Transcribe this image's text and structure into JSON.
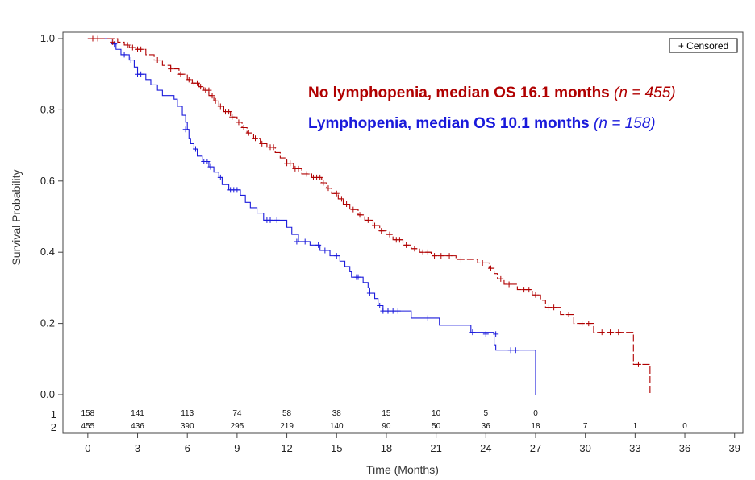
{
  "chart_data": {
    "type": "line",
    "title": "",
    "xlabel": "Time (Months)",
    "ylabel": "Survival Probability",
    "xlim": [
      -1.5,
      39.5
    ],
    "ylim": [
      0,
      1.03
    ],
    "x_ticks": [
      0,
      3,
      6,
      9,
      12,
      15,
      18,
      21,
      24,
      27,
      30,
      33,
      36,
      39
    ],
    "y_ticks": [
      0.0,
      0.2,
      0.4,
      0.6,
      0.8,
      1.0
    ],
    "x_tick_labels": [
      "0",
      "3",
      "6",
      "9",
      "12",
      "15",
      "18",
      "21",
      "24",
      "27",
      "30",
      "33",
      "36",
      "39"
    ],
    "y_tick_labels": [
      "0.0",
      "0.2",
      "0.4",
      "0.6",
      "0.8",
      "1.0"
    ],
    "grid": false,
    "legend": {
      "placement": "top-right",
      "label": "+ Censored"
    },
    "annotations": [
      {
        "text": "No lymphopenia, median OS 16.1 months",
        "n_text": "(n = 455)",
        "color": "#b00000"
      },
      {
        "text": "Lymphopenia, median OS 10.1 months",
        "n_text": "(n = 158)",
        "color": "#1a1adb"
      }
    ],
    "series": [
      {
        "key": "1",
        "color": "#1a1adb",
        "dash": "solid",
        "steps": [
          [
            0,
            1.0
          ],
          [
            1.4,
            0.985
          ],
          [
            1.7,
            0.97
          ],
          [
            2.0,
            0.955
          ],
          [
            2.5,
            0.94
          ],
          [
            2.8,
            0.92
          ],
          [
            3.0,
            0.9
          ],
          [
            3.5,
            0.885
          ],
          [
            3.8,
            0.87
          ],
          [
            4.2,
            0.855
          ],
          [
            4.5,
            0.84
          ],
          [
            5.2,
            0.83
          ],
          [
            5.4,
            0.81
          ],
          [
            5.7,
            0.785
          ],
          [
            5.9,
            0.765
          ],
          [
            6.0,
            0.745
          ],
          [
            6.1,
            0.72
          ],
          [
            6.2,
            0.705
          ],
          [
            6.4,
            0.69
          ],
          [
            6.6,
            0.67
          ],
          [
            6.9,
            0.655
          ],
          [
            7.3,
            0.64
          ],
          [
            7.6,
            0.625
          ],
          [
            7.9,
            0.61
          ],
          [
            8.1,
            0.59
          ],
          [
            8.5,
            0.575
          ],
          [
            9.2,
            0.56
          ],
          [
            9.5,
            0.54
          ],
          [
            9.8,
            0.525
          ],
          [
            10.2,
            0.51
          ],
          [
            10.6,
            0.49
          ],
          [
            12.0,
            0.47
          ],
          [
            12.3,
            0.45
          ],
          [
            12.7,
            0.43
          ],
          [
            13.4,
            0.42
          ],
          [
            14.0,
            0.405
          ],
          [
            14.6,
            0.39
          ],
          [
            15.2,
            0.375
          ],
          [
            15.5,
            0.36
          ],
          [
            15.8,
            0.345
          ],
          [
            15.9,
            0.33
          ],
          [
            16.6,
            0.315
          ],
          [
            16.9,
            0.3
          ],
          [
            17.0,
            0.285
          ],
          [
            17.3,
            0.27
          ],
          [
            17.5,
            0.25
          ],
          [
            17.8,
            0.235
          ],
          [
            19.5,
            0.215
          ],
          [
            21.2,
            0.195
          ],
          [
            23.1,
            0.175
          ],
          [
            24.5,
            0.14
          ],
          [
            24.6,
            0.125
          ],
          [
            27.0,
            0.0
          ]
        ],
        "censored": [
          [
            1.6,
            0.985
          ],
          [
            2.2,
            0.955
          ],
          [
            2.6,
            0.94
          ],
          [
            3.0,
            0.9
          ],
          [
            3.2,
            0.9
          ],
          [
            5.9,
            0.745
          ],
          [
            6.5,
            0.69
          ],
          [
            7.0,
            0.655
          ],
          [
            7.2,
            0.655
          ],
          [
            7.4,
            0.64
          ],
          [
            8.0,
            0.61
          ],
          [
            8.6,
            0.575
          ],
          [
            8.8,
            0.575
          ],
          [
            9.0,
            0.575
          ],
          [
            10.8,
            0.49
          ],
          [
            11.0,
            0.49
          ],
          [
            11.4,
            0.49
          ],
          [
            12.6,
            0.43
          ],
          [
            13.1,
            0.43
          ],
          [
            13.9,
            0.42
          ],
          [
            14.3,
            0.405
          ],
          [
            15.0,
            0.39
          ],
          [
            16.2,
            0.33
          ],
          [
            16.3,
            0.33
          ],
          [
            17.0,
            0.285
          ],
          [
            17.6,
            0.25
          ],
          [
            17.8,
            0.235
          ],
          [
            18.1,
            0.235
          ],
          [
            18.4,
            0.235
          ],
          [
            18.7,
            0.235
          ],
          [
            20.5,
            0.215
          ],
          [
            23.2,
            0.175
          ],
          [
            24.0,
            0.17
          ],
          [
            24.6,
            0.17
          ],
          [
            25.5,
            0.125
          ],
          [
            25.8,
            0.125
          ]
        ],
        "at_risk": [
          158,
          141,
          113,
          74,
          58,
          38,
          15,
          10,
          5,
          0
        ]
      },
      {
        "key": "2",
        "color": "#b00000",
        "dash": "dashed",
        "steps": [
          [
            0,
            1.0
          ],
          [
            1.8,
            0.99
          ],
          [
            2.2,
            0.982
          ],
          [
            2.5,
            0.975
          ],
          [
            2.8,
            0.97
          ],
          [
            3.5,
            0.955
          ],
          [
            4.0,
            0.94
          ],
          [
            4.5,
            0.925
          ],
          [
            5.0,
            0.915
          ],
          [
            5.5,
            0.9
          ],
          [
            6.0,
            0.885
          ],
          [
            6.3,
            0.875
          ],
          [
            6.7,
            0.865
          ],
          [
            7.0,
            0.855
          ],
          [
            7.3,
            0.84
          ],
          [
            7.6,
            0.825
          ],
          [
            7.9,
            0.81
          ],
          [
            8.2,
            0.795
          ],
          [
            8.6,
            0.78
          ],
          [
            9.0,
            0.765
          ],
          [
            9.3,
            0.75
          ],
          [
            9.6,
            0.735
          ],
          [
            10.0,
            0.72
          ],
          [
            10.4,
            0.705
          ],
          [
            10.8,
            0.695
          ],
          [
            11.3,
            0.68
          ],
          [
            11.6,
            0.665
          ],
          [
            12.0,
            0.65
          ],
          [
            12.4,
            0.635
          ],
          [
            12.9,
            0.62
          ],
          [
            13.5,
            0.61
          ],
          [
            14.1,
            0.595
          ],
          [
            14.4,
            0.58
          ],
          [
            14.7,
            0.565
          ],
          [
            15.1,
            0.55
          ],
          [
            15.4,
            0.535
          ],
          [
            15.8,
            0.52
          ],
          [
            16.3,
            0.505
          ],
          [
            16.7,
            0.49
          ],
          [
            17.2,
            0.475
          ],
          [
            17.6,
            0.46
          ],
          [
            18.0,
            0.45
          ],
          [
            18.4,
            0.435
          ],
          [
            19.0,
            0.42
          ],
          [
            19.5,
            0.41
          ],
          [
            20.0,
            0.4
          ],
          [
            20.7,
            0.39
          ],
          [
            22.2,
            0.38
          ],
          [
            23.5,
            0.37
          ],
          [
            24.2,
            0.355
          ],
          [
            24.5,
            0.34
          ],
          [
            24.7,
            0.325
          ],
          [
            25.1,
            0.31
          ],
          [
            25.9,
            0.295
          ],
          [
            26.8,
            0.28
          ],
          [
            27.3,
            0.265
          ],
          [
            27.6,
            0.245
          ],
          [
            28.5,
            0.225
          ],
          [
            29.3,
            0.2
          ],
          [
            30.5,
            0.175
          ],
          [
            32.9,
            0.085
          ],
          [
            33.9,
            0.0
          ]
        ],
        "censored": [
          [
            0.3,
            1.0
          ],
          [
            0.6,
            1.0
          ],
          [
            1.5,
            0.99
          ],
          [
            2.4,
            0.982
          ],
          [
            2.7,
            0.975
          ],
          [
            3.0,
            0.97
          ],
          [
            3.2,
            0.97
          ],
          [
            4.2,
            0.94
          ],
          [
            5.0,
            0.915
          ],
          [
            5.6,
            0.9
          ],
          [
            6.1,
            0.885
          ],
          [
            6.4,
            0.875
          ],
          [
            6.6,
            0.875
          ],
          [
            6.8,
            0.865
          ],
          [
            7.1,
            0.855
          ],
          [
            7.3,
            0.855
          ],
          [
            7.5,
            0.84
          ],
          [
            7.7,
            0.825
          ],
          [
            8.0,
            0.81
          ],
          [
            8.3,
            0.795
          ],
          [
            8.5,
            0.795
          ],
          [
            8.7,
            0.78
          ],
          [
            9.1,
            0.765
          ],
          [
            9.4,
            0.75
          ],
          [
            9.7,
            0.735
          ],
          [
            10.1,
            0.72
          ],
          [
            10.5,
            0.705
          ],
          [
            11.0,
            0.695
          ],
          [
            11.2,
            0.695
          ],
          [
            12.0,
            0.65
          ],
          [
            12.2,
            0.65
          ],
          [
            12.5,
            0.635
          ],
          [
            12.7,
            0.635
          ],
          [
            13.2,
            0.62
          ],
          [
            13.6,
            0.61
          ],
          [
            13.8,
            0.61
          ],
          [
            14.0,
            0.61
          ],
          [
            14.2,
            0.595
          ],
          [
            14.5,
            0.58
          ],
          [
            15.0,
            0.565
          ],
          [
            15.3,
            0.55
          ],
          [
            15.6,
            0.535
          ],
          [
            16.0,
            0.52
          ],
          [
            16.4,
            0.505
          ],
          [
            16.9,
            0.49
          ],
          [
            17.3,
            0.475
          ],
          [
            17.7,
            0.46
          ],
          [
            18.2,
            0.45
          ],
          [
            18.6,
            0.435
          ],
          [
            18.8,
            0.435
          ],
          [
            19.2,
            0.42
          ],
          [
            19.7,
            0.41
          ],
          [
            20.2,
            0.4
          ],
          [
            20.5,
            0.4
          ],
          [
            20.9,
            0.39
          ],
          [
            21.3,
            0.39
          ],
          [
            21.8,
            0.39
          ],
          [
            22.5,
            0.38
          ],
          [
            23.8,
            0.37
          ],
          [
            24.3,
            0.355
          ],
          [
            24.9,
            0.325
          ],
          [
            25.4,
            0.31
          ],
          [
            26.3,
            0.295
          ],
          [
            26.6,
            0.295
          ],
          [
            27.0,
            0.28
          ],
          [
            27.8,
            0.245
          ],
          [
            28.1,
            0.245
          ],
          [
            29.0,
            0.225
          ],
          [
            29.8,
            0.2
          ],
          [
            30.2,
            0.2
          ],
          [
            31.0,
            0.175
          ],
          [
            31.5,
            0.175
          ],
          [
            32.0,
            0.175
          ],
          [
            33.2,
            0.085
          ]
        ],
        "at_risk": [
          455,
          436,
          390,
          295,
          219,
          140,
          90,
          50,
          36,
          18,
          7,
          1,
          0
        ]
      }
    ]
  }
}
